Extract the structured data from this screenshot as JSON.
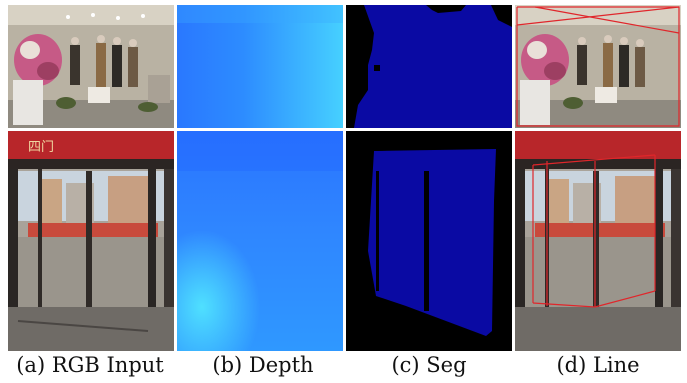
{
  "captions": {
    "rgb": "(a) RGB Input",
    "depth": "(b) Depth",
    "seg": "(c) Seg",
    "line": "(d) Line"
  },
  "colors": {
    "line_overlay": "#e0262b",
    "seg_glass": "#0a0aa3",
    "seg_background": "#000000",
    "depth_near": "#1e6cff",
    "depth_far": "#3fd6ff"
  },
  "storefront_sign": "四门"
}
